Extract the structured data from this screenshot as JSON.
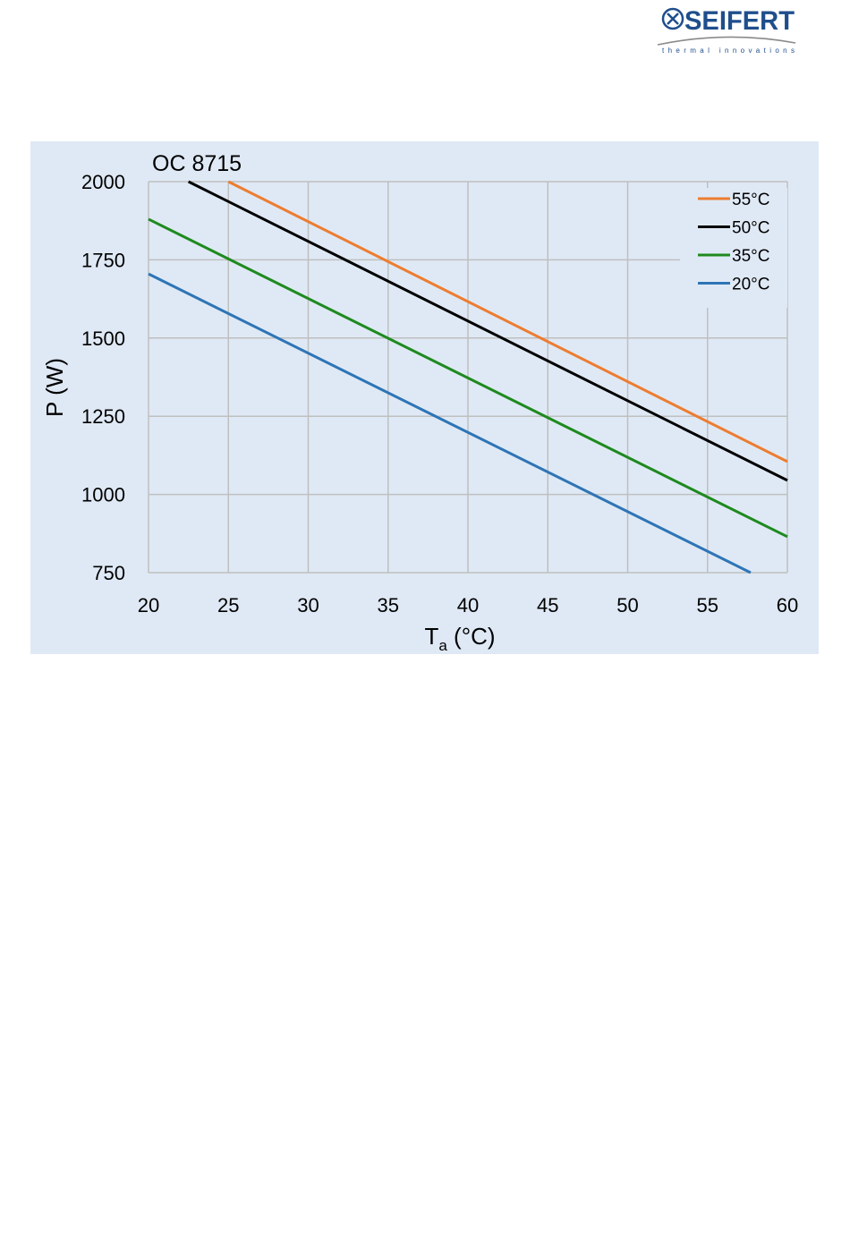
{
  "brand": {
    "name": "SEIFERT",
    "tagline": "thermal innovations",
    "color": "#1f4e8c"
  },
  "chart_data": {
    "type": "line",
    "title": "OC 8715",
    "xlabel_main": "T",
    "xlabel_sub": "a",
    "xlabel_unit": " (°C)",
    "ylabel": "P (W)",
    "xlim": [
      20,
      60
    ],
    "ylim": [
      750,
      2000
    ],
    "xticks": [
      20,
      25,
      30,
      35,
      40,
      45,
      50,
      55,
      60
    ],
    "yticks": [
      750,
      1000,
      1250,
      1500,
      1750,
      2000
    ],
    "grid": true,
    "legend_position": "top-right",
    "background_color": "#dfe9f5",
    "grid_color": "#bfbfbf",
    "series": [
      {
        "name": "55°C",
        "color": "#ed7d31",
        "x": [
          25,
          60
        ],
        "y": [
          2000,
          1105
        ]
      },
      {
        "name": "50°C",
        "color": "#000000",
        "x": [
          22.5,
          60
        ],
        "y": [
          2000,
          1045
        ]
      },
      {
        "name": "35°C",
        "color": "#1e8a1e",
        "x": [
          20,
          60
        ],
        "y": [
          1880,
          865
        ]
      },
      {
        "name": "20°C",
        "color": "#2e75b6",
        "x": [
          20,
          57.7
        ],
        "y": [
          1705,
          750
        ]
      }
    ]
  }
}
